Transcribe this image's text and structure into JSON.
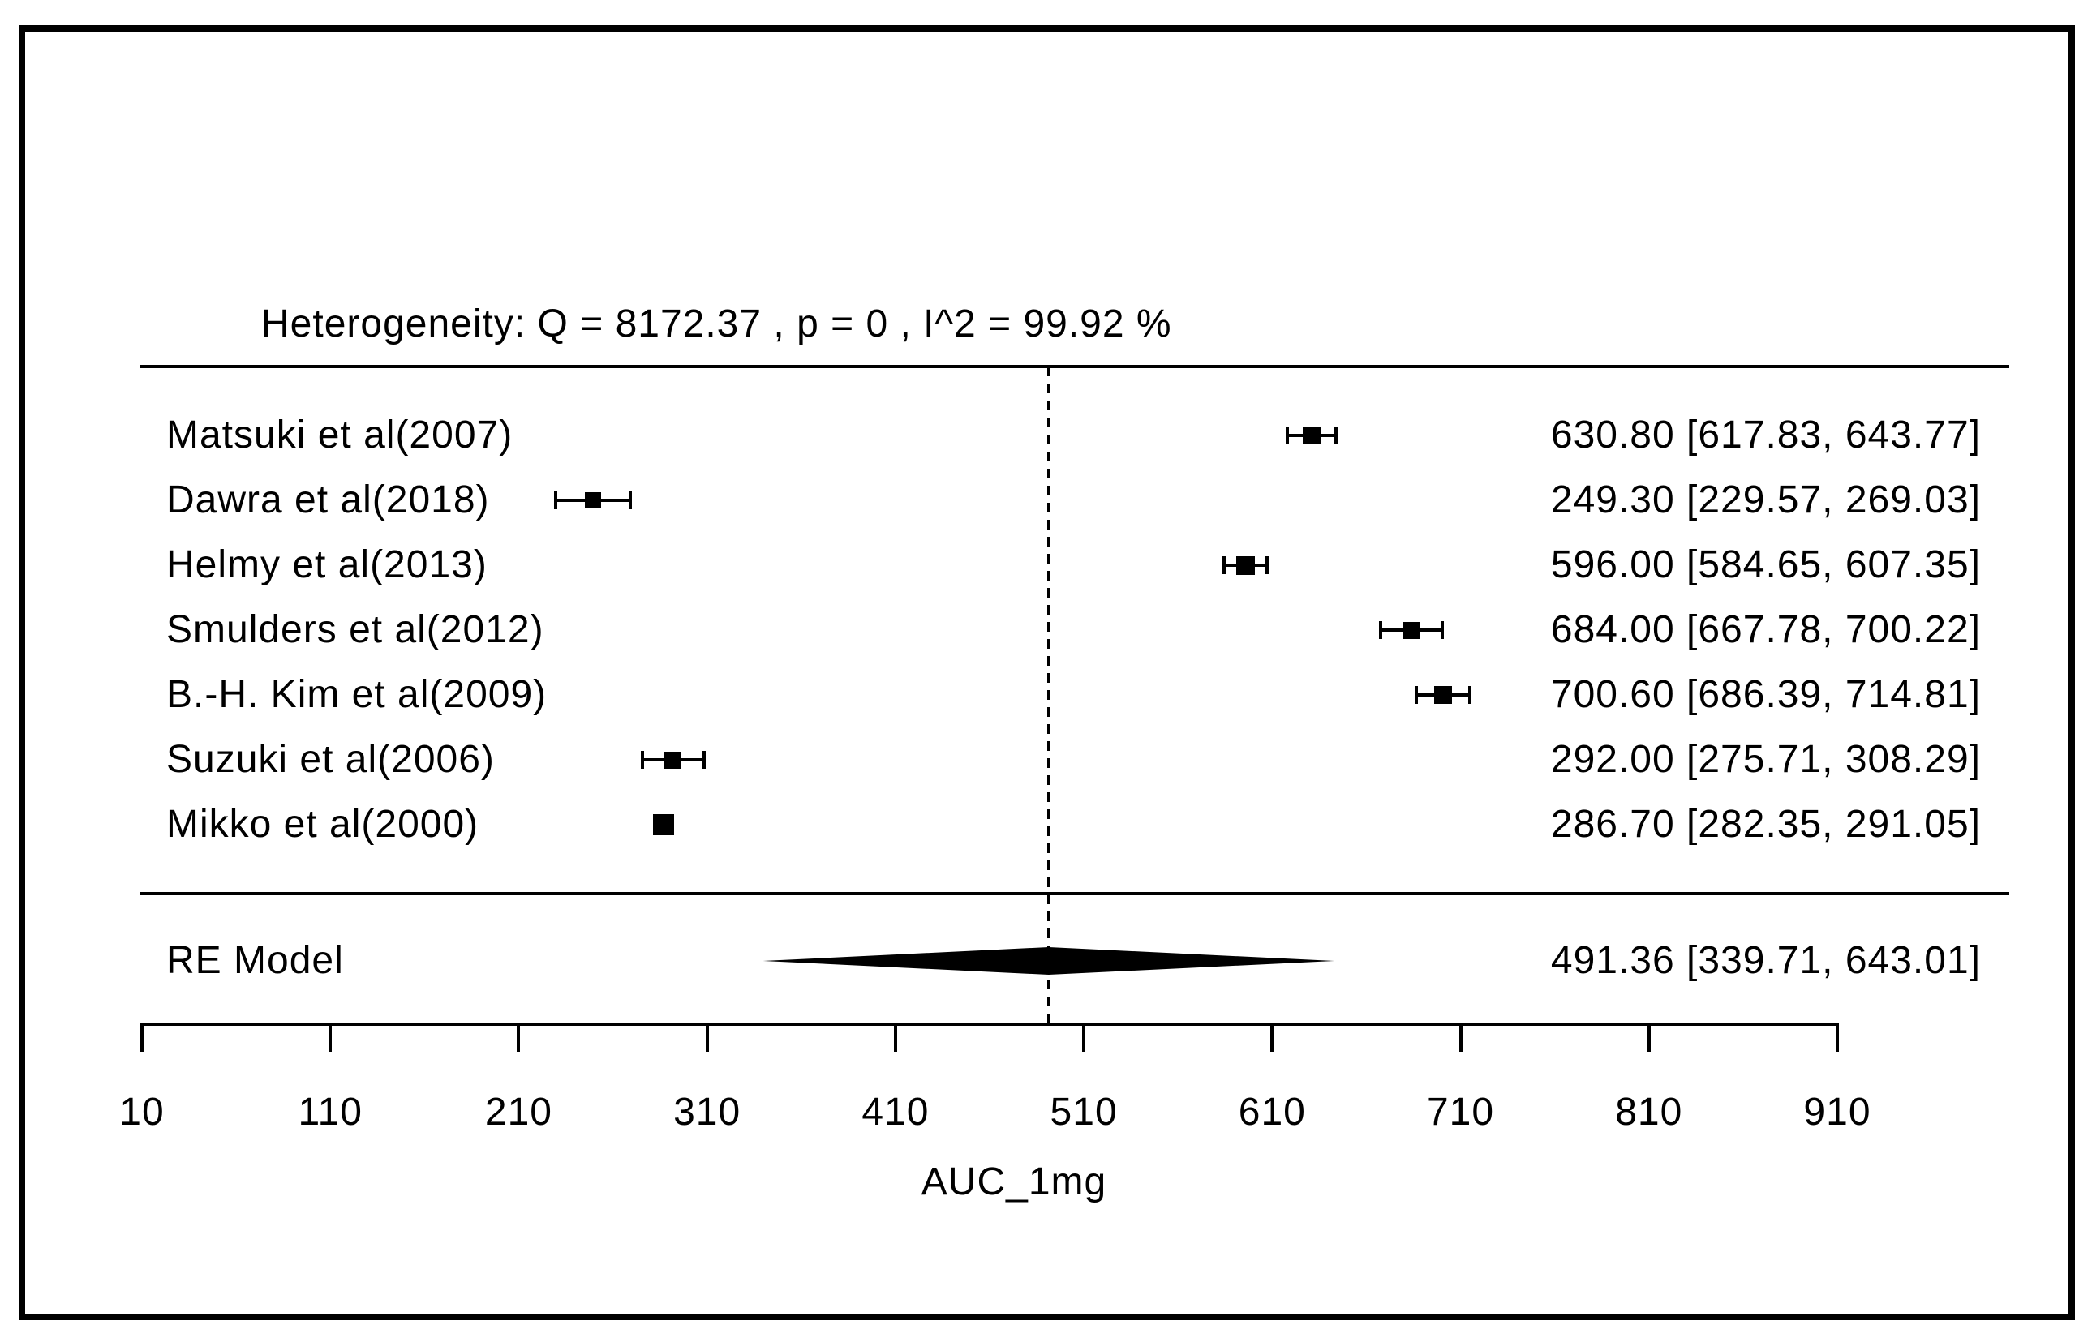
{
  "chart_data": {
    "type": "forest",
    "heterogeneity_note": "Heterogeneity: Q = 8172.37 , p = 0 , I^2 = 99.92 %",
    "heterogeneity": {
      "Q": 8172.37,
      "p": 0,
      "I2_percent": 99.92
    },
    "xlabel": "AUC_1mg",
    "x_ticks": [
      10,
      110,
      210,
      310,
      410,
      510,
      610,
      710,
      810,
      910
    ],
    "x_range": [
      10,
      910
    ],
    "reference_line_x": 491.36,
    "grid": false,
    "studies": [
      {
        "label": "Matsuki et al(2007)",
        "estimate": 630.8,
        "ci_lower": 617.83,
        "ci_upper": 643.77,
        "annotation": "630.80 [617.83, 643.77]",
        "marker_size": 22
      },
      {
        "label": "Dawra et al(2018)",
        "estimate": 249.3,
        "ci_lower": 229.57,
        "ci_upper": 269.03,
        "annotation": "249.30 [229.57, 269.03]",
        "marker_size": 20
      },
      {
        "label": "Helmy et al(2013)",
        "estimate": 596.0,
        "ci_lower": 584.65,
        "ci_upper": 607.35,
        "annotation": "596.00 [584.65, 607.35]",
        "marker_size": 23
      },
      {
        "label": "Smulders et al(2012)",
        "estimate": 684.0,
        "ci_lower": 667.78,
        "ci_upper": 700.22,
        "annotation": "684.00 [667.78, 700.22]",
        "marker_size": 21
      },
      {
        "label": "B.-H. Kim et al(2009)",
        "estimate": 700.6,
        "ci_lower": 686.39,
        "ci_upper": 714.81,
        "annotation": "700.60 [686.39, 714.81]",
        "marker_size": 22
      },
      {
        "label": "Suzuki et al(2006)",
        "estimate": 292.0,
        "ci_lower": 275.71,
        "ci_upper": 308.29,
        "annotation": "292.00 [275.71, 308.29]",
        "marker_size": 21
      },
      {
        "label": "Mikko et al(2000)",
        "estimate": 286.7,
        "ci_lower": 282.35,
        "ci_upper": 291.05,
        "annotation": "286.70 [282.35, 291.05]",
        "marker_size": 26
      }
    ],
    "summary": {
      "label": "RE Model",
      "estimate": 491.36,
      "ci_lower": 339.71,
      "ci_upper": 643.01,
      "annotation": "491.36 [339.71, 643.01]"
    }
  }
}
